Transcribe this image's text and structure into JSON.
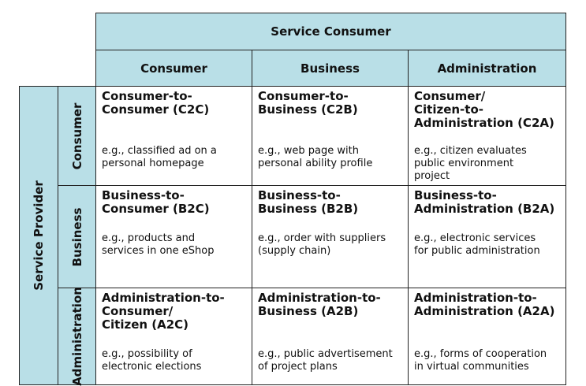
{
  "header": {
    "title": "Service Consumer"
  },
  "columns": [
    "Consumer",
    "Business",
    "Administration"
  ],
  "row_group_label": "Service Provider",
  "rows": [
    {
      "label": "Consumer",
      "cells": [
        {
          "title": "Consumer-to-\nConsumer (C2C)",
          "example": "e.g., classified ad on a\npersonal homepage"
        },
        {
          "title": "Consumer-to-\nBusiness (C2B)",
          "example": "e.g., web page with\npersonal ability profile"
        },
        {
          "title": "Consumer/\nCitizen-to-\nAdministration (C2A)",
          "example": "e.g., citizen evaluates\npublic environment\nproject"
        }
      ]
    },
    {
      "label": "Business",
      "cells": [
        {
          "title": "Business-to-\nConsumer (B2C)",
          "example": "e.g., products and\nservices in one eShop"
        },
        {
          "title": "Business-to-\nBusiness (B2B)",
          "example": "e.g., order with suppliers\n(supply chain)"
        },
        {
          "title": "Business-to-\nAdministration (B2A)",
          "example": "e.g., electronic services\nfor public administration"
        }
      ]
    },
    {
      "label": "Administration",
      "cells": [
        {
          "title": "Administration-to-\nConsumer/\nCitizen (A2C)",
          "example": "e.g., possibility of\nelectronic elections"
        },
        {
          "title": "Administration-to-\nBusiness (A2B)",
          "example": "e.g., public advertisement\nof project plans"
        },
        {
          "title": "Administration-to-\nAdministration (A2A)",
          "example": "e.g., forms of cooperation\nin virtual communities"
        }
      ]
    }
  ]
}
